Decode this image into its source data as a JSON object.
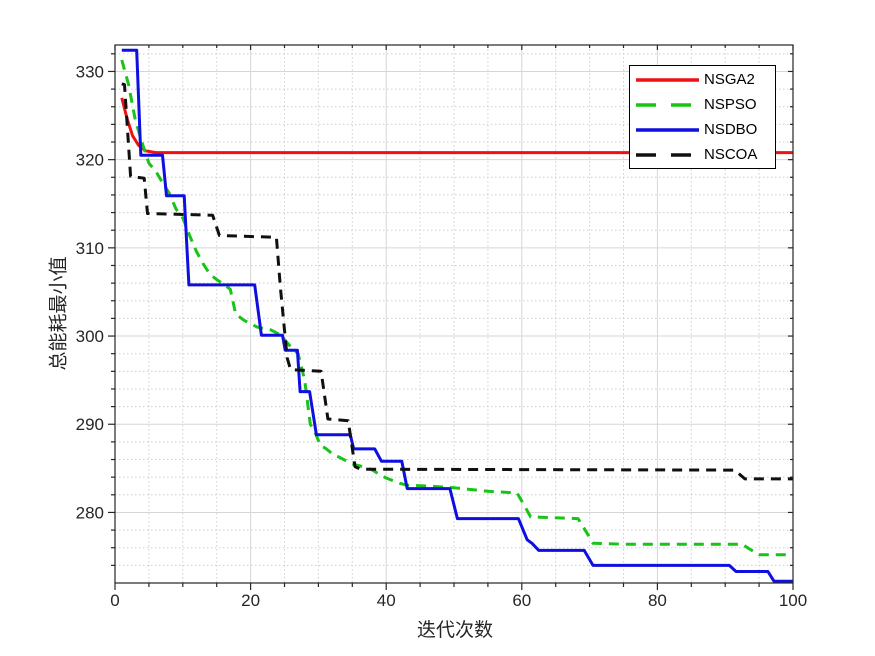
{
  "chart_data": {
    "type": "line",
    "title": "",
    "xlabel": "迭代次数",
    "ylabel": "总能耗最小值",
    "xlim": [
      0,
      100
    ],
    "ylim": [
      272,
      333
    ],
    "xticks": [
      0,
      20,
      40,
      60,
      80,
      100
    ],
    "yticks": [
      280,
      290,
      300,
      310,
      320,
      330
    ],
    "x_minor_step": 5,
    "y_minor_step": 2,
    "grid": "major solid, minor dotted",
    "legend_position": "top-right",
    "colors": {
      "major_grid": "#d6d6d6",
      "minor_grid": "#cfcfcf",
      "axis": "#262626",
      "background": "#ffffff"
    },
    "series": [
      {
        "name": "NSGA2",
        "color": "#ee1111",
        "style": "solid",
        "points": [
          [
            1,
            327.0
          ],
          [
            1.8,
            324.6
          ],
          [
            2.6,
            322.7
          ],
          [
            3.5,
            321.6
          ],
          [
            4.5,
            321.0
          ],
          [
            6,
            320.8
          ],
          [
            100,
            320.8
          ]
        ]
      },
      {
        "name": "NSPSO",
        "color": "#17c417",
        "style": "dashed",
        "points": [
          [
            1,
            331.3
          ],
          [
            2,
            328.5
          ],
          [
            3,
            324.5
          ],
          [
            4,
            321.9
          ],
          [
            5,
            319.6
          ],
          [
            6,
            318.7
          ],
          [
            7,
            317.4
          ],
          [
            8,
            316.2
          ],
          [
            9,
            314.4
          ],
          [
            10,
            313.4
          ],
          [
            11,
            311.4
          ],
          [
            12,
            309.6
          ],
          [
            13,
            308.2
          ],
          [
            14,
            307.0
          ],
          [
            15,
            306.4
          ],
          [
            16,
            305.9
          ],
          [
            17,
            305.3
          ],
          [
            17.8,
            302.5
          ],
          [
            19,
            301.8
          ],
          [
            21,
            301.0
          ],
          [
            23,
            300.7
          ],
          [
            24,
            300.3
          ],
          [
            25,
            299.6
          ],
          [
            26,
            298.7
          ],
          [
            27,
            298.0
          ],
          [
            27.6,
            296.2
          ],
          [
            28,
            294.9
          ],
          [
            28.8,
            290.0
          ],
          [
            29.5,
            289.1
          ],
          [
            30.3,
            287.6
          ],
          [
            31,
            287.3
          ],
          [
            32,
            286.7
          ],
          [
            33,
            286.3
          ],
          [
            34,
            285.9
          ],
          [
            35,
            285.5
          ],
          [
            36,
            285.3
          ],
          [
            37,
            285.1
          ],
          [
            38,
            284.8
          ],
          [
            39,
            284.3
          ],
          [
            40,
            283.9
          ],
          [
            41,
            283.6
          ],
          [
            42,
            283.3
          ],
          [
            43,
            283.1
          ],
          [
            46,
            283.0
          ],
          [
            50,
            282.8
          ],
          [
            55,
            282.4
          ],
          [
            59.3,
            282.2
          ],
          [
            60.3,
            280.9
          ],
          [
            61.3,
            279.5
          ],
          [
            68.3,
            279.3
          ],
          [
            69.5,
            277.8
          ],
          [
            70.5,
            276.5
          ],
          [
            75,
            276.4
          ],
          [
            92.5,
            276.4
          ],
          [
            93.5,
            275.9
          ],
          [
            95,
            275.2
          ],
          [
            100,
            275.2
          ]
        ]
      },
      {
        "name": "NSDBO",
        "color": "#0f0fe0",
        "style": "solid",
        "points": [
          [
            1,
            332.4
          ],
          [
            3.2,
            332.4
          ],
          [
            3.8,
            320.5
          ],
          [
            7,
            320.5
          ],
          [
            7.6,
            315.9
          ],
          [
            10.2,
            315.9
          ],
          [
            10.9,
            305.8
          ],
          [
            20.6,
            305.8
          ],
          [
            21.6,
            300.1
          ],
          [
            24.7,
            300.1
          ],
          [
            25.1,
            298.4
          ],
          [
            26.9,
            298.4
          ],
          [
            27.3,
            293.7
          ],
          [
            28.7,
            293.7
          ],
          [
            29.7,
            288.8
          ],
          [
            34.7,
            288.8
          ],
          [
            35.2,
            287.2
          ],
          [
            38.3,
            287.2
          ],
          [
            39.3,
            285.8
          ],
          [
            42.3,
            285.8
          ],
          [
            43.1,
            282.7
          ],
          [
            49.4,
            282.7
          ],
          [
            50.5,
            279.3
          ],
          [
            59.5,
            279.3
          ],
          [
            60.8,
            276.9
          ],
          [
            61.5,
            276.5
          ],
          [
            62.5,
            275.7
          ],
          [
            69.2,
            275.7
          ],
          [
            70.5,
            274.0
          ],
          [
            90.6,
            274.0
          ],
          [
            91.6,
            273.3
          ],
          [
            96.3,
            273.3
          ],
          [
            97.2,
            272.2
          ],
          [
            100,
            272.2
          ]
        ]
      },
      {
        "name": "NSCOA",
        "color": "#101010",
        "style": "dashed",
        "points": [
          [
            1,
            328.6
          ],
          [
            1.4,
            328.5
          ],
          [
            2.3,
            318.1
          ],
          [
            4.3,
            317.9
          ],
          [
            4.8,
            313.9
          ],
          [
            14.4,
            313.7
          ],
          [
            15.4,
            311.4
          ],
          [
            23.8,
            311.2
          ],
          [
            24.4,
            305.5
          ],
          [
            25.4,
            297.5
          ],
          [
            25.9,
            296.2
          ],
          [
            30.4,
            296.0
          ],
          [
            31.4,
            290.6
          ],
          [
            34.4,
            290.4
          ],
          [
            35.4,
            285.2
          ],
          [
            36.2,
            284.9
          ],
          [
            91.4,
            284.8
          ],
          [
            92.9,
            283.8
          ],
          [
            100,
            283.8
          ]
        ]
      }
    ]
  }
}
